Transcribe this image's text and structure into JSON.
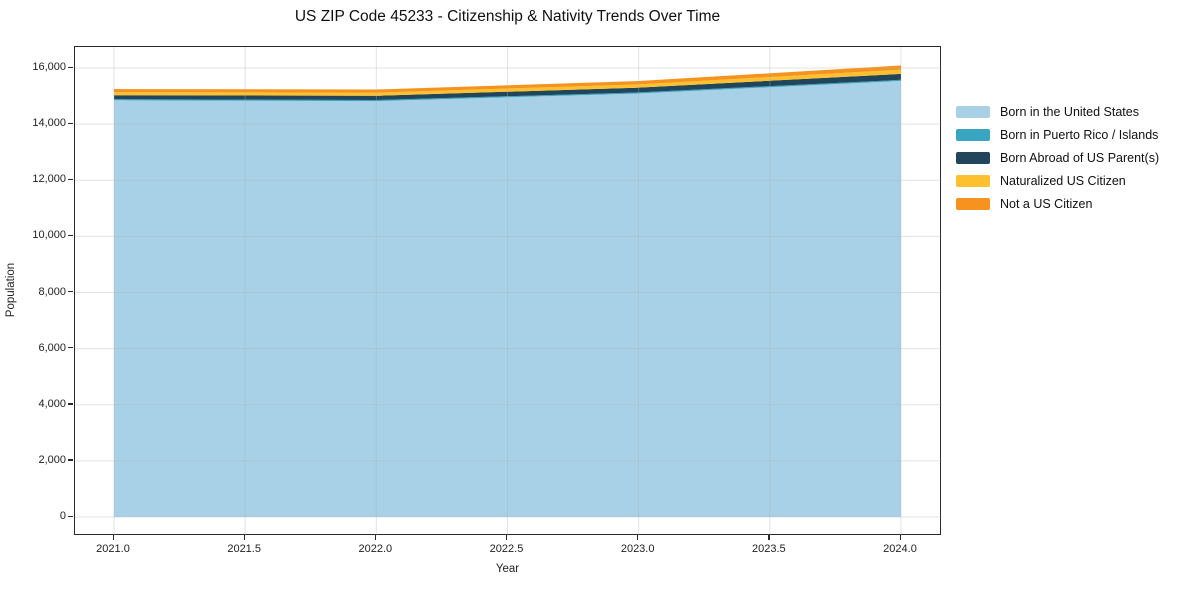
{
  "title": "US ZIP Code 45233 - Citizenship & Nativity Trends Over Time",
  "x_axis": {
    "label": "Year",
    "tick_labels": [
      "2021.0",
      "2021.5",
      "2022.0",
      "2022.5",
      "2023.0",
      "2023.5",
      "2024.0"
    ],
    "tick_values": [
      2021.0,
      2021.5,
      2022.0,
      2022.5,
      2023.0,
      2023.5,
      2024.0
    ]
  },
  "y_axis": {
    "label": "Population",
    "tick_labels": [
      "0",
      "2,000",
      "4,000",
      "6,000",
      "8,000",
      "10,000",
      "12,000",
      "14,000",
      "16,000"
    ],
    "tick_values": [
      0,
      2000,
      4000,
      6000,
      8000,
      10000,
      12000,
      14000,
      16000
    ]
  },
  "chart_data": {
    "type": "area",
    "stacked": true,
    "title": "US ZIP Code 45233 - Citizenship & Nativity Trends Over Time",
    "xlabel": "Year",
    "ylabel": "Population",
    "x": [
      2021,
      2022,
      2023,
      2024
    ],
    "series": [
      {
        "name": "Born in the United States",
        "color": "#a8d1e7",
        "values": [
          14850,
          14820,
          15090,
          15540
        ]
      },
      {
        "name": "Born in Puerto Rico / Islands",
        "color": "#3aa5c1",
        "values": [
          40,
          40,
          40,
          40
        ]
      },
      {
        "name": "Born Abroad of US Parent(s)",
        "color": "#21455a",
        "values": [
          140,
          150,
          170,
          210
        ]
      },
      {
        "name": "Naturalized US Citizen",
        "color": "#fdc130",
        "values": [
          110,
          110,
          115,
          150
        ]
      },
      {
        "name": "Not a US Citizen",
        "color": "#f6921e",
        "values": [
          110,
          115,
          120,
          150
        ]
      }
    ],
    "totals": [
      15250,
      15235,
      15535,
      16090
    ],
    "xlim": [
      2021,
      2024
    ],
    "ylim": [
      0,
      16000
    ],
    "grid": true,
    "legend_position": "right-outside",
    "grid_color": "#b0b0b0",
    "spine_color": "#2a2a2a",
    "background_color": "#ffffff"
  }
}
